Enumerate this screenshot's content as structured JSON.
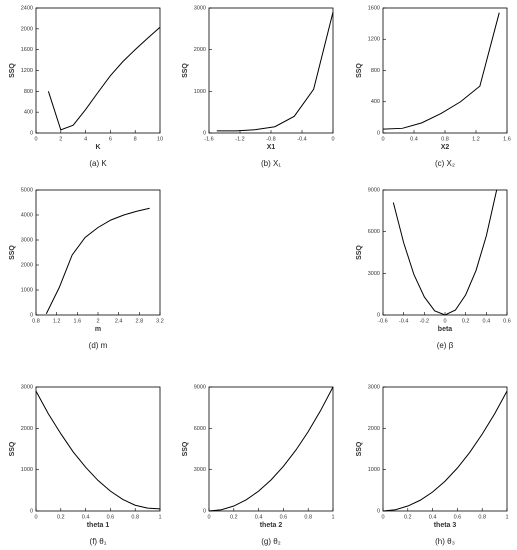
{
  "chart_data": [
    {
      "type": "line",
      "xlabel": "K",
      "ylabel": "SSQ",
      "caption": "(a) K",
      "x": [
        1,
        2,
        3,
        4,
        5,
        6,
        7,
        8,
        9,
        10
      ],
      "values": [
        800,
        60,
        150,
        450,
        780,
        1100,
        1370,
        1600,
        1820,
        2030
      ],
      "color": "#000000",
      "xlim": [
        0,
        10
      ],
      "xticks": [
        0,
        2,
        4,
        6,
        8,
        10
      ],
      "ylim": [
        0,
        2400
      ],
      "yticks": [
        0,
        400,
        800,
        1200,
        1600,
        2000,
        2400
      ]
    },
    {
      "type": "line",
      "xlabel": "X1",
      "ylabel": "SSQ",
      "caption": "(b) X₁",
      "x": [
        -1.5,
        -1.25,
        -1.0,
        -0.75,
        -0.5,
        -0.25,
        0
      ],
      "values": [
        50,
        50,
        80,
        150,
        400,
        1050,
        2900
      ],
      "color": "#000000",
      "xlim": [
        -1.6,
        0
      ],
      "xticks": [
        -1.6,
        -1.2,
        -0.8,
        -0.4,
        0
      ],
      "ylim": [
        0,
        3000
      ],
      "yticks": [
        0,
        1000,
        2000,
        3000
      ]
    },
    {
      "type": "line",
      "xlabel": "X2",
      "ylabel": "SSQ",
      "caption": "(c) X₂",
      "x": [
        0,
        0.25,
        0.5,
        0.75,
        1.0,
        1.25,
        1.5
      ],
      "values": [
        50,
        60,
        130,
        250,
        400,
        600,
        1540
      ],
      "color": "#000000",
      "xlim": [
        0,
        1.6
      ],
      "xticks": [
        0,
        0.4,
        0.8,
        1.2,
        1.6
      ],
      "ylim": [
        0,
        1600
      ],
      "yticks": [
        0,
        400,
        800,
        1200,
        1600
      ]
    },
    {
      "type": "line",
      "xlabel": "m",
      "ylabel": "SSQ",
      "caption": "(d) m",
      "x": [
        1.0,
        1.25,
        1.5,
        1.75,
        2.0,
        2.25,
        2.5,
        2.75,
        3.0
      ],
      "values": [
        50,
        1100,
        2400,
        3100,
        3500,
        3800,
        4000,
        4150,
        4270
      ],
      "color": "#000000",
      "xlim": [
        0.8,
        3.2
      ],
      "xticks": [
        0.8,
        1.2,
        1.6,
        2,
        2.4,
        2.8,
        3.2
      ],
      "ylim": [
        0,
        5000
      ],
      "yticks": [
        0,
        1000,
        2000,
        3000,
        4000,
        5000
      ]
    },
    {
      "type": "line",
      "xlabel": "beta",
      "ylabel": "SSQ",
      "caption": "(e) β",
      "x": [
        -0.5,
        -0.4,
        -0.3,
        -0.2,
        -0.1,
        0,
        0.1,
        0.2,
        0.3,
        0.4,
        0.5
      ],
      "values": [
        8100,
        5200,
        2900,
        1300,
        300,
        0,
        350,
        1450,
        3200,
        5700,
        9000
      ],
      "color": "#000000",
      "xlim": [
        -0.6,
        0.6
      ],
      "xticks": [
        -0.6,
        -0.4,
        -0.2,
        0,
        0.2,
        0.4,
        0.6
      ],
      "ylim": [
        0,
        9000
      ],
      "yticks": [
        0,
        3000,
        6000,
        9000
      ]
    },
    {
      "type": "line",
      "xlabel": "theta 1",
      "ylabel": "SSQ",
      "caption": "(f) θ₁",
      "x": [
        0,
        0.1,
        0.2,
        0.3,
        0.4,
        0.5,
        0.6,
        0.7,
        0.8,
        0.9,
        1
      ],
      "values": [
        2900,
        2350,
        1870,
        1430,
        1060,
        740,
        480,
        280,
        140,
        70,
        50
      ],
      "color": "#000000",
      "xlim": [
        0,
        1
      ],
      "xticks": [
        0,
        0.2,
        0.4,
        0.6,
        0.8,
        1
      ],
      "ylim": [
        0,
        3000
      ],
      "yticks": [
        0,
        1000,
        2000,
        3000
      ]
    },
    {
      "type": "line",
      "xlabel": "theta 2",
      "ylabel": "SSQ",
      "caption": "(g) θ₂",
      "x": [
        0,
        0.1,
        0.2,
        0.3,
        0.4,
        0.5,
        0.6,
        0.7,
        0.8,
        0.9,
        1
      ],
      "values": [
        0,
        90,
        360,
        810,
        1440,
        2250,
        3240,
        4410,
        5760,
        7290,
        9000
      ],
      "color": "#000000",
      "xlim": [
        0,
        1
      ],
      "xticks": [
        0,
        0.2,
        0.4,
        0.6,
        0.8,
        1
      ],
      "ylim": [
        0,
        9000
      ],
      "yticks": [
        0,
        3000,
        6000,
        9000
      ]
    },
    {
      "type": "line",
      "xlabel": "theta 3",
      "ylabel": "SSQ",
      "caption": "(h) θ₃",
      "x": [
        0,
        0.1,
        0.2,
        0.3,
        0.4,
        0.5,
        0.6,
        0.7,
        0.8,
        0.9,
        1
      ],
      "values": [
        0,
        30,
        120,
        260,
        460,
        720,
        1040,
        1420,
        1860,
        2350,
        2900
      ],
      "color": "#000000",
      "xlim": [
        0,
        1
      ],
      "xticks": [
        0,
        0.2,
        0.4,
        0.6,
        0.8,
        1
      ],
      "ylim": [
        0,
        3000
      ],
      "yticks": [
        0,
        1000,
        2000,
        3000
      ]
    }
  ]
}
